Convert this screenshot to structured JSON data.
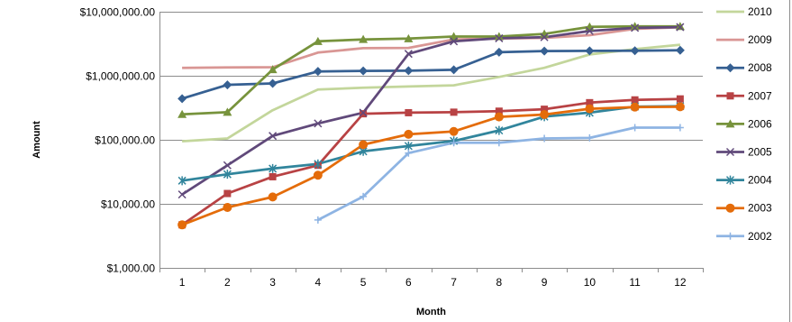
{
  "chart_data": {
    "type": "line",
    "xlabel": "Month",
    "ylabel": "Amount",
    "yscale": "log",
    "ylim": [
      1000,
      10000000
    ],
    "y_ticks": [
      1000,
      10000,
      100000,
      1000000,
      10000000
    ],
    "y_tick_labels": [
      "$1,000.00",
      "$10,000.00",
      "$100,000.00",
      "$1,000,000.00",
      "$10,000,000.00"
    ],
    "categories": [
      "1",
      "2",
      "3",
      "4",
      "5",
      "6",
      "7",
      "8",
      "9",
      "10",
      "11",
      "12"
    ],
    "grid": "horizontal",
    "legend_position": "right",
    "series": [
      {
        "name": "2010",
        "color": "#c3d69b",
        "marker": "none",
        "values": [
          95000,
          105000,
          290000,
          610000,
          650000,
          680000,
          710000,
          960000,
          1330000,
          2150000,
          2600000,
          3050000
        ]
      },
      {
        "name": "2009",
        "color": "#d99694",
        "marker": "none",
        "values": [
          1330000,
          1350000,
          1360000,
          2300000,
          2700000,
          2720000,
          3700000,
          3800000,
          3900000,
          4300000,
          5400000,
          5700000
        ]
      },
      {
        "name": "2008",
        "color": "#366092",
        "marker": "diamond",
        "values": [
          440000,
          720000,
          760000,
          1170000,
          1190000,
          1200000,
          1240000,
          2330000,
          2430000,
          2450000,
          2460000,
          2500000
        ]
      },
      {
        "name": "2007",
        "color": "#b84244",
        "marker": "square",
        "values": [
          4700,
          14500,
          26500,
          40000,
          255000,
          265000,
          270000,
          280000,
          300000,
          380000,
          420000,
          435000
        ]
      },
      {
        "name": "2006",
        "color": "#77933c",
        "marker": "triangle",
        "values": [
          250000,
          270000,
          1250000,
          3450000,
          3700000,
          3800000,
          4100000,
          4100000,
          4500000,
          5800000,
          5900000,
          5900000
        ]
      },
      {
        "name": "2005",
        "color": "#60497a",
        "marker": "x",
        "values": [
          14000,
          40000,
          115000,
          180000,
          265000,
          2200000,
          3450000,
          3850000,
          4000000,
          5000000,
          5600000,
          5750000
        ]
      },
      {
        "name": "2004",
        "color": "#31859c",
        "marker": "star",
        "values": [
          23000,
          29000,
          35500,
          42000,
          66000,
          80000,
          96000,
          140000,
          230000,
          265000,
          330000,
          335000
        ]
      },
      {
        "name": "2003",
        "color": "#e46c0a",
        "marker": "circle",
        "values": [
          4700,
          8800,
          12800,
          28000,
          84000,
          122000,
          135000,
          228000,
          248000,
          305000,
          325000,
          328000
        ]
      },
      {
        "name": "2002",
        "color": "#8eb4e3",
        "marker": "plus",
        "values": [
          null,
          null,
          null,
          5600,
          13000,
          62000,
          90000,
          90000,
          105000,
          107000,
          155000,
          155000
        ]
      }
    ]
  }
}
